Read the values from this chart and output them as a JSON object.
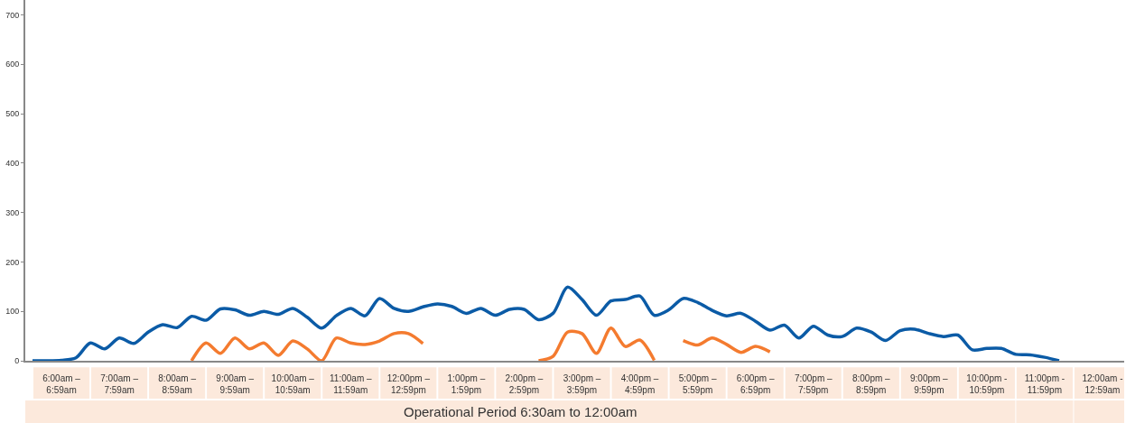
{
  "chart_data": {
    "type": "line",
    "xlabel": "Operational Period 6:30am to 12:00am",
    "categories": [
      null,
      null,
      "6:00am –\n6:59am",
      null,
      null,
      null,
      "7:00am –\n7:59am",
      null,
      null,
      null,
      "8:00am –\n8:59am",
      null,
      null,
      null,
      "9:00am –\n9:59am",
      null,
      null,
      null,
      "10:00am –\n10:59am",
      null,
      null,
      null,
      "11:00am –\n11:59am",
      null,
      null,
      null,
      "12:00pm –\n12:59pm",
      null,
      null,
      null,
      "1:00pm –\n1:59pm",
      null,
      null,
      null,
      "2:00pm –\n2:59pm",
      null,
      null,
      null,
      "3:00pm –\n3:59pm",
      null,
      null,
      null,
      "4:00pm –\n4:59pm",
      null,
      null,
      null,
      "5:00pm –\n5:59pm",
      null,
      null,
      null,
      "6:00pm –\n6:59pm",
      null,
      null,
      null,
      "7:00pm –\n7:59pm",
      null,
      null,
      null,
      "8:00pm –\n8:59pm",
      null,
      null,
      null,
      "9:00pm –\n9:59pm",
      null,
      null,
      null,
      "10:00pm -\n10:59pm",
      null,
      null,
      null,
      "11:00pm -\n11:59pm",
      null,
      null,
      null,
      "12:00am -\n12:59am",
      null
    ],
    "ylim": [
      0,
      730
    ],
    "yticks": [
      0,
      100,
      200,
      300,
      400,
      500,
      600,
      700
    ],
    "line_style": "solid",
    "series": [
      {
        "color": "#0b5ba6",
        "values": [
          0,
          0,
          1,
          6,
          36,
          24,
          46,
          35,
          58,
          73,
          67,
          90,
          82,
          105,
          103,
          92,
          100,
          94,
          106,
          88,
          66,
          91,
          106,
          91,
          126,
          106,
          100,
          109,
          115,
          110,
          96,
          106,
          92,
          104,
          104,
          83,
          96,
          149,
          124,
          92,
          121,
          124,
          131,
          92,
          103,
          126,
          118,
          102,
          91,
          96,
          80,
          62,
          72,
          46,
          70,
          52,
          49,
          66,
          58,
          41,
          61,
          64,
          55,
          49,
          52,
          22,
          25,
          25,
          13,
          12,
          7,
          0,
          null,
          null,
          null,
          null
        ]
      },
      {
        "color": "#f47b2f",
        "values": [
          null,
          null,
          null,
          null,
          null,
          null,
          null,
          null,
          null,
          null,
          null,
          0,
          36,
          15,
          46,
          24,
          36,
          11,
          40,
          24,
          0,
          46,
          36,
          33,
          40,
          55,
          55,
          35,
          null,
          null,
          null,
          null,
          null,
          null,
          null,
          0,
          9,
          58,
          55,
          15,
          66,
          29,
          42,
          1,
          null,
          41,
          32,
          46,
          33,
          17,
          29,
          18,
          null,
          null,
          null,
          null,
          null,
          null,
          null,
          null,
          null,
          null,
          null,
          null,
          null,
          null,
          null,
          null,
          null,
          null,
          null,
          null,
          null,
          null,
          null,
          null
        ]
      }
    ]
  }
}
